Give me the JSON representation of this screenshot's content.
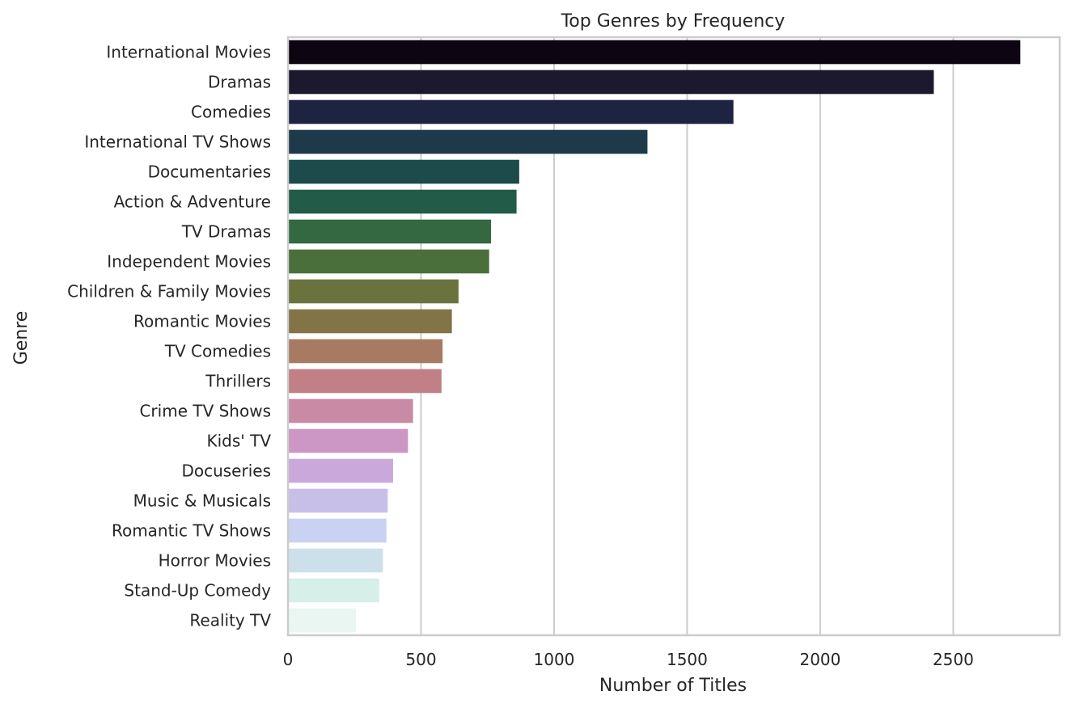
{
  "chart_data": {
    "type": "bar",
    "orientation": "horizontal",
    "title": "Top Genres by Frequency",
    "xlabel": "Number of Titles",
    "ylabel": "Genre",
    "xlim": [
      0,
      2900
    ],
    "xticks": [
      0,
      500,
      1000,
      1500,
      2000,
      2500
    ],
    "grid": "x",
    "legend": "none",
    "categories": [
      "International Movies",
      "Dramas",
      "Comedies",
      "International TV Shows",
      "Documentaries",
      "Action & Adventure",
      "TV Dramas",
      "Independent Movies",
      "Children & Family Movies",
      "Romantic Movies",
      "TV Comedies",
      "Thrillers",
      "Crime TV Shows",
      "Kids' TV",
      "Docuseries",
      "Music & Musicals",
      "Romantic TV Shows",
      "Horror Movies",
      "Stand-Up Comedy",
      "Reality TV"
    ],
    "values": [
      2752,
      2427,
      1674,
      1351,
      869,
      859,
      763,
      756,
      641,
      616,
      581,
      577,
      470,
      451,
      395,
      375,
      370,
      357,
      343,
      255
    ],
    "colors": [
      "#0d0612",
      "#1c182d",
      "#1e233f",
      "#1e3a4a",
      "#1d4a4a",
      "#225c48",
      "#346841",
      "#4a6f3b",
      "#6a733e",
      "#827447",
      "#a77b62",
      "#c08085",
      "#c98aa5",
      "#cc97c5",
      "#caa8dc",
      "#c8bfe9",
      "#c9d2f0",
      "#cce0eb",
      "#d6efe8",
      "#e9f6f1"
    ]
  }
}
